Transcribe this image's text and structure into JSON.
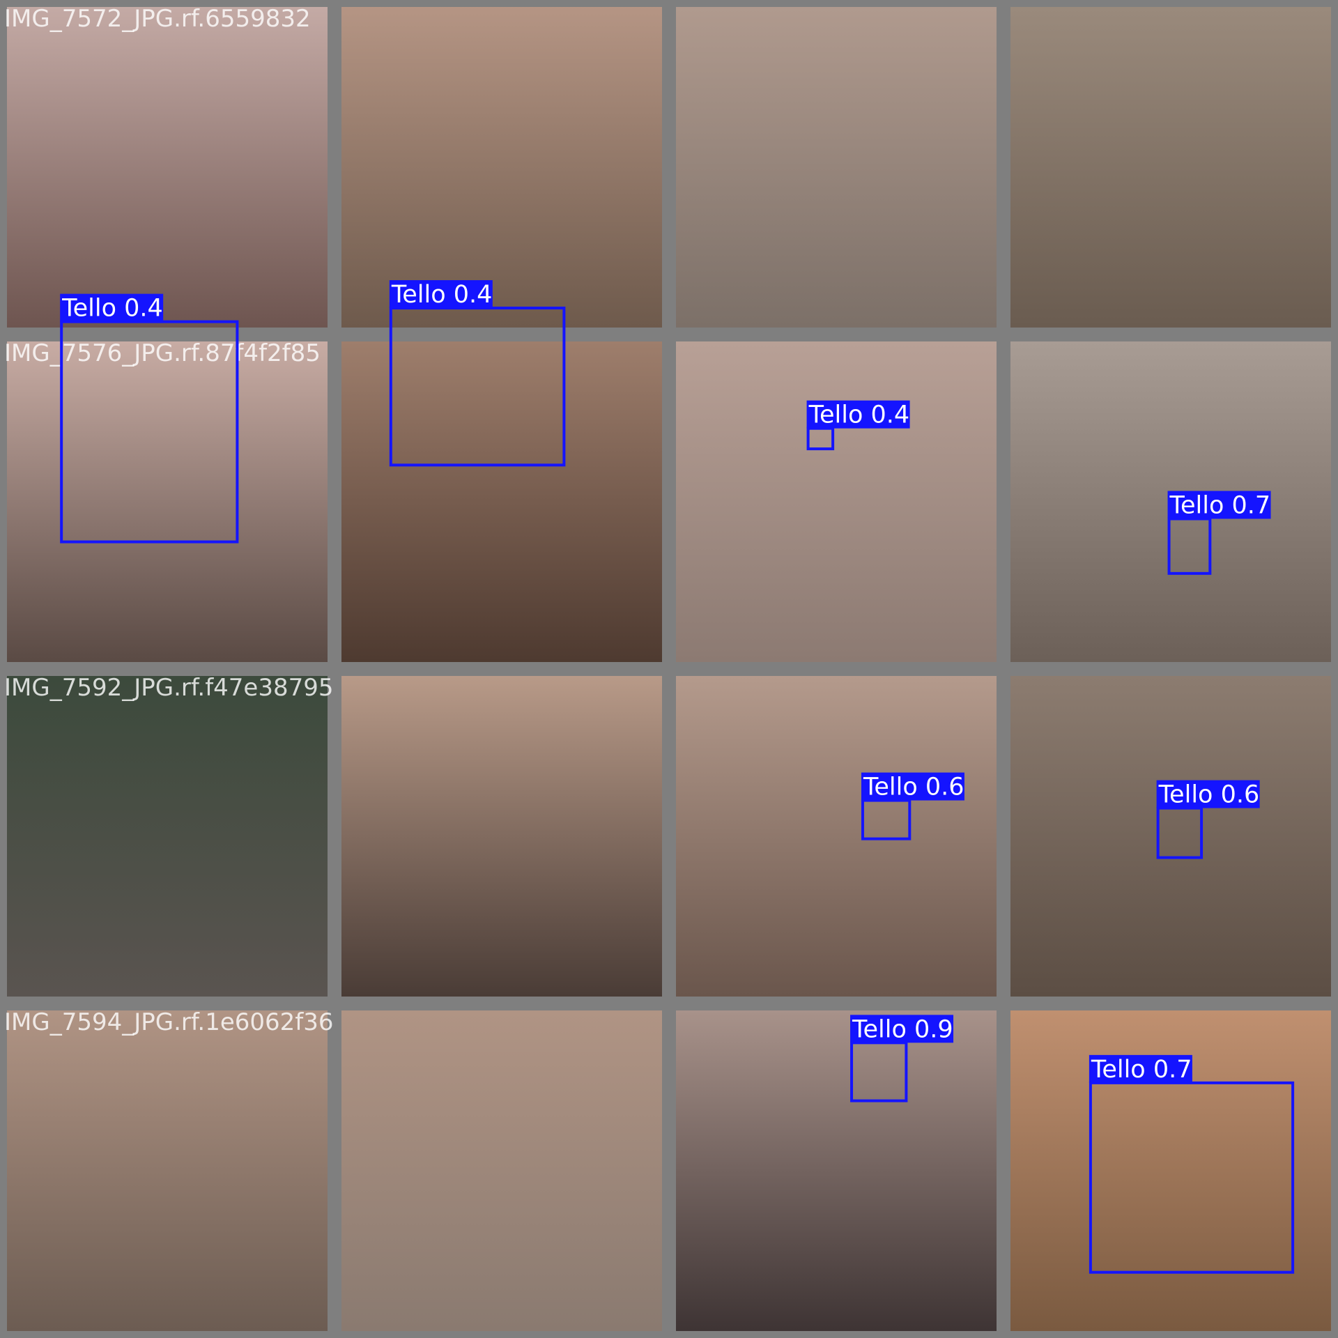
{
  "filenames": [
    "IMG_7572_JPG.rf.6559832",
    "IMG_7576_JPG.rf.87f4f2f85",
    "IMG_7592_JPG.rf.f47e38795",
    "IMG_7594_JPG.rf.1e6062f36"
  ],
  "detections": [
    {
      "label": "Tello 0.4"
    },
    {
      "label": "Tello 0.4"
    },
    {
      "label": "Tello 0.4"
    },
    {
      "label": "Tello 0.7"
    },
    {
      "label": "Tello 0.6"
    },
    {
      "label": "Tello 0.6"
    },
    {
      "label": "Tello 0.9"
    },
    {
      "label": "Tello 0.7"
    }
  ]
}
